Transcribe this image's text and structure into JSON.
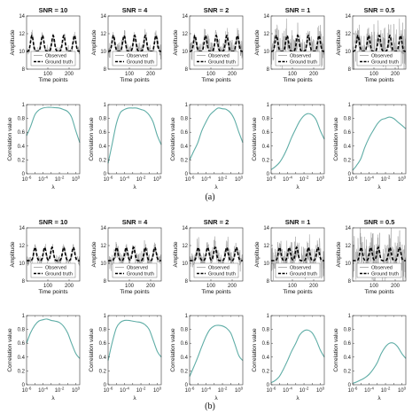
{
  "captions": [
    "(a)",
    "(b)"
  ],
  "legend": {
    "observed": "Observed",
    "truth": "Ground truth"
  },
  "colors": {
    "observed": "#9a9a9a",
    "truth": "#000000",
    "correlation": "#5fada6"
  },
  "chart_data": [
    {
      "figure": "(a)",
      "type": "line",
      "role": "time-series",
      "titles": [
        "SNR = 10",
        "SNR = 4",
        "SNR = 2",
        "SNR = 1",
        "SNR = 0.5"
      ],
      "snr": [
        10,
        4,
        2,
        1,
        0.5
      ],
      "xlabel": "Time points",
      "ylabel": "Amplitude",
      "xlim": [
        0,
        250
      ],
      "ylim": [
        8,
        14
      ],
      "xticks": [
        100,
        200
      ],
      "yticks": [
        8,
        10,
        12,
        14
      ],
      "ground_truth": {
        "baseline": 10,
        "peak": 11.8,
        "peaks_at": [
          25,
          75,
          125,
          175,
          225
        ]
      }
    },
    {
      "figure": "(a)",
      "type": "line",
      "role": "correlation",
      "xlabel": "λ",
      "ylabel": "Correlation value",
      "xscale": "log",
      "xlim": [
        1e-06,
        3
      ],
      "xtick_labels": [
        "10-6",
        "10-4",
        "10-2",
        "100"
      ],
      "ylim": [
        0,
        1
      ],
      "yticks": [
        0,
        0.2,
        0.4,
        0.6,
        0.8,
        1
      ],
      "lambda": [
        1e-06,
        3e-06,
        1e-05,
        3e-05,
        0.0001,
        0.0003,
        0.001,
        0.003,
        0.01,
        0.03,
        0.1,
        0.3,
        1,
        3
      ],
      "series": [
        {
          "values": [
            0.55,
            0.68,
            0.85,
            0.92,
            0.95,
            0.96,
            0.96,
            0.955,
            0.95,
            0.93,
            0.9,
            0.82,
            0.62,
            0.45
          ]
        },
        {
          "values": [
            0.15,
            0.42,
            0.72,
            0.88,
            0.93,
            0.95,
            0.95,
            0.95,
            0.93,
            0.91,
            0.85,
            0.75,
            0.55,
            0.42
          ]
        },
        {
          "values": [
            0.2,
            0.32,
            0.45,
            0.62,
            0.75,
            0.85,
            0.91,
            0.95,
            0.94,
            0.93,
            0.88,
            0.78,
            0.6,
            0.45
          ]
        },
        {
          "values": [
            0.06,
            0.1,
            0.16,
            0.25,
            0.38,
            0.52,
            0.65,
            0.76,
            0.84,
            0.87,
            0.85,
            0.78,
            0.62,
            0.5
          ]
        },
        {
          "values": [
            0.05,
            0.12,
            0.22,
            0.38,
            0.52,
            0.62,
            0.72,
            0.78,
            0.8,
            0.82,
            0.8,
            0.75,
            0.7,
            0.65
          ]
        }
      ]
    },
    {
      "figure": "(b)",
      "type": "line",
      "role": "time-series",
      "titles": [
        "SNR = 10",
        "SNR = 4",
        "SNR = 2",
        "SNR = 1",
        "SNR = 0.5"
      ],
      "snr": [
        10,
        4,
        2,
        1,
        0.5
      ],
      "xlabel": "Time points",
      "ylabel": "Amplitude",
      "xlim": [
        0,
        250
      ],
      "ylim": [
        8,
        14
      ],
      "xticks": [
        100,
        200
      ],
      "yticks": [
        8,
        10,
        12,
        14
      ],
      "ground_truth": {
        "baseline": 10.3,
        "peak": 11.8,
        "peaks_at": [
          40,
          85,
          120,
          175,
          220
        ]
      }
    },
    {
      "figure": "(b)",
      "type": "line",
      "role": "correlation",
      "xlabel": "λ",
      "ylabel": "Correlation value",
      "xscale": "log",
      "xlim": [
        1e-06,
        3
      ],
      "xtick_labels": [
        "10-6",
        "10-4",
        "10-2",
        "100"
      ],
      "ylim": [
        0,
        1
      ],
      "yticks": [
        0,
        0.2,
        0.4,
        0.6,
        0.8,
        1
      ],
      "lambda": [
        1e-06,
        3e-06,
        1e-05,
        3e-05,
        0.0001,
        0.0003,
        0.001,
        0.003,
        0.01,
        0.03,
        0.1,
        0.3,
        1,
        3
      ],
      "series": [
        {
          "values": [
            0.6,
            0.75,
            0.86,
            0.92,
            0.94,
            0.95,
            0.93,
            0.92,
            0.9,
            0.85,
            0.75,
            0.6,
            0.45,
            0.38
          ]
        },
        {
          "values": [
            0.35,
            0.6,
            0.82,
            0.9,
            0.93,
            0.93,
            0.92,
            0.91,
            0.9,
            0.87,
            0.8,
            0.65,
            0.48,
            0.4
          ]
        },
        {
          "values": [
            0.12,
            0.25,
            0.4,
            0.55,
            0.7,
            0.8,
            0.85,
            0.86,
            0.85,
            0.82,
            0.75,
            0.6,
            0.42,
            0.35
          ]
        },
        {
          "values": [
            0.03,
            0.06,
            0.12,
            0.22,
            0.35,
            0.48,
            0.6,
            0.72,
            0.78,
            0.79,
            0.75,
            0.65,
            0.5,
            0.4
          ]
        },
        {
          "values": [
            0.02,
            0.04,
            0.07,
            0.1,
            0.15,
            0.22,
            0.32,
            0.45,
            0.55,
            0.6,
            0.6,
            0.55,
            0.45,
            0.38
          ]
        }
      ]
    }
  ]
}
